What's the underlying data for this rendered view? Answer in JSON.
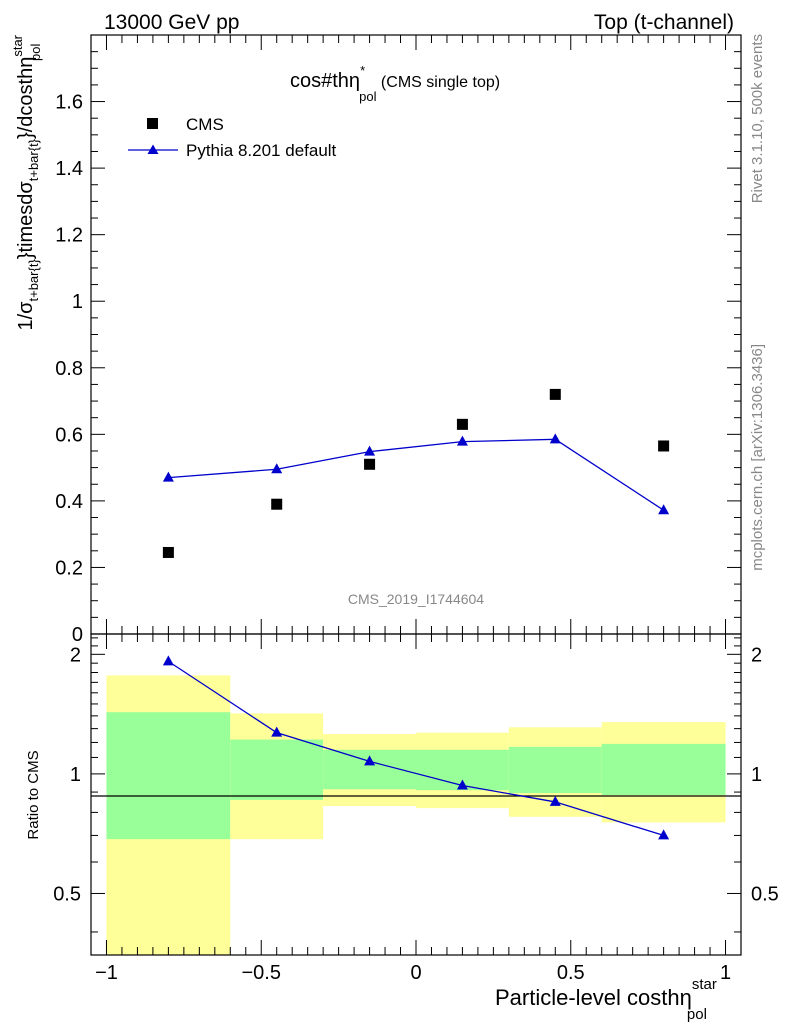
{
  "header": {
    "left": "13000 GeV pp",
    "right": "Top (t-channel)"
  },
  "side": {
    "rivet": "Rivet 3.1.10,  500k events",
    "mcplots": "mcplots.cern.ch [arXiv:1306.3436]"
  },
  "chart_data": [
    {
      "type": "scatter",
      "title_main": "cos#thη",
      "title_sup": "*",
      "title_sub": "pol",
      "title_tail": " (CMS single top)",
      "analysis_id": "CMS_2019_I1744604",
      "ylabel": "1/σ_{t+bar{t}}timesdσ_{t+bar{t}}/dcosthη^{star}_{pol}",
      "ylabel_parts": {
        "a": "1/σ",
        "a_sub": "t+bar{t}",
        "b": "}timesdσ",
        "b_sub": "t+bar{t}",
        "c": "}/dcosthη",
        "c_sup": "star",
        "c_sub": "pol"
      },
      "xlim": [
        -1.05,
        1.05
      ],
      "ylim": [
        0,
        1.8
      ],
      "yticks": [
        0,
        0.2,
        0.4,
        0.6,
        0.8,
        1,
        1.2,
        1.4,
        1.6
      ],
      "ytick_labels": [
        "0",
        "0.2",
        "0.4",
        "0.6",
        "0.8",
        "1",
        "1.2",
        "1.4",
        "1.6"
      ],
      "legend": [
        {
          "name": "CMS",
          "marker": "square",
          "color": "#000000"
        },
        {
          "name": "Pythia 8.201 default",
          "marker": "triangle",
          "color": "#0000cc"
        }
      ],
      "series": [
        {
          "name": "CMS",
          "color": "#000000",
          "marker": "square",
          "x": [
            -0.8,
            -0.45,
            -0.15,
            0.15,
            0.45,
            0.8
          ],
          "y": [
            0.245,
            0.39,
            0.51,
            0.63,
            0.72,
            0.565
          ]
        },
        {
          "name": "Pythia 8.201 default",
          "color": "#0000cc",
          "marker": "triangle",
          "x": [
            -0.8,
            -0.45,
            -0.15,
            0.15,
            0.45,
            0.8
          ],
          "y": [
            0.47,
            0.495,
            0.548,
            0.578,
            0.585,
            0.372
          ]
        }
      ]
    },
    {
      "type": "scatter",
      "ylabel": "Ratio to CMS",
      "xlabel_main": "Particle-level costhη",
      "xlabel_sup": "star",
      "xlabel_sub": "pol",
      "xlim": [
        -1.05,
        1.05
      ],
      "ylim": [
        0.35,
        2.25
      ],
      "yscale": "log",
      "yticks": [
        0.5,
        1,
        2
      ],
      "ytick_labels": [
        "0.5",
        "1",
        "2"
      ],
      "xticks": [
        -1,
        -0.5,
        0,
        0.5,
        1
      ],
      "xtick_labels": [
        "−1",
        "−0.5",
        "0",
        "0.5",
        "1"
      ],
      "bins": [
        [
          -1,
          -0.6
        ],
        [
          -0.6,
          -0.3
        ],
        [
          -0.3,
          0
        ],
        [
          0,
          0.3
        ],
        [
          0.3,
          0.6
        ],
        [
          0.6,
          1
        ]
      ],
      "band_yellow": [
        [
          0.35,
          1.77
        ],
        [
          0.685,
          1.42
        ],
        [
          0.83,
          1.26
        ],
        [
          0.82,
          1.27
        ],
        [
          0.78,
          1.31
        ],
        [
          0.755,
          1.35
        ]
      ],
      "band_green": [
        [
          0.685,
          1.43
        ],
        [
          0.86,
          1.22
        ],
        [
          0.915,
          1.15
        ],
        [
          0.91,
          1.15
        ],
        [
          0.895,
          1.17
        ],
        [
          0.885,
          1.19
        ]
      ],
      "band_colors": {
        "yellow": "#ffff99",
        "green": "#99ff99"
      },
      "series": [
        {
          "name": "Pythia 8.201 default",
          "color": "#0000cc",
          "marker": "triangle",
          "x": [
            -0.8,
            -0.45,
            -0.15,
            0.15,
            0.45,
            0.8
          ],
          "y": [
            1.92,
            1.27,
            1.075,
            0.935,
            0.85,
            0.7
          ]
        }
      ]
    }
  ]
}
